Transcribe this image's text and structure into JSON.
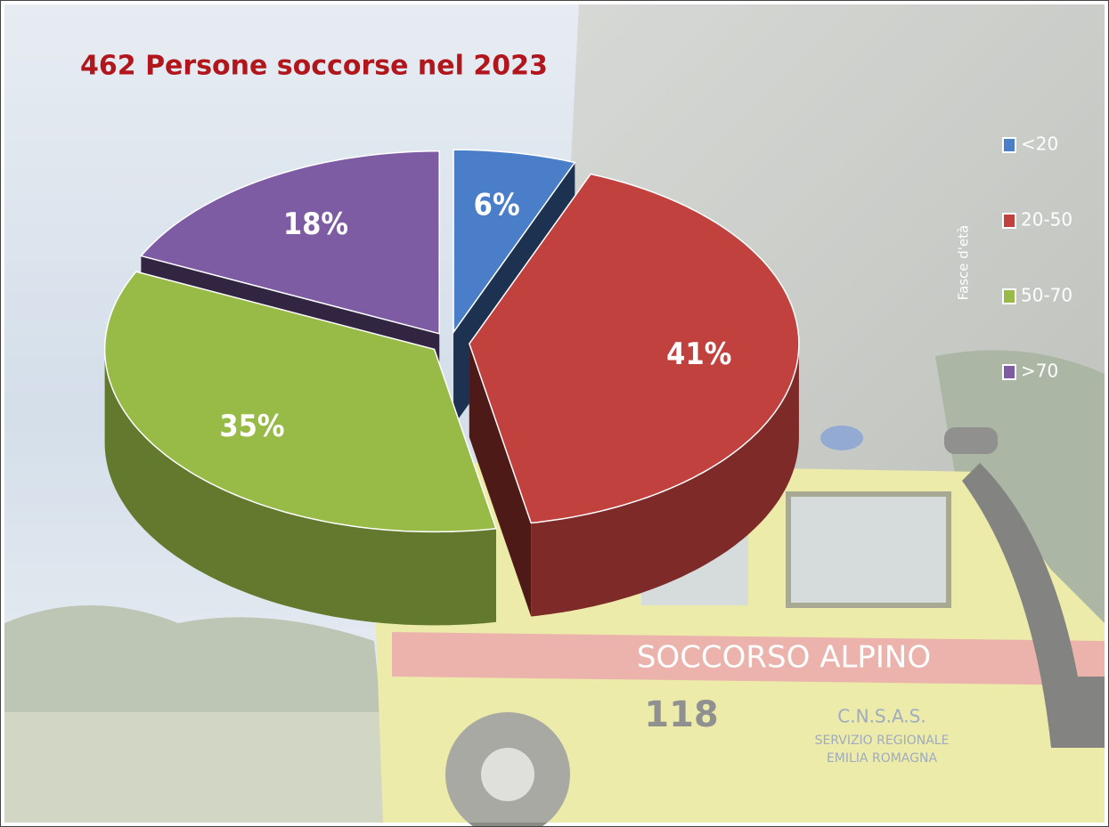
{
  "chart_data": {
    "type": "pie3d",
    "title": "462 Persone soccorse nel 2023",
    "legend_title": "Fasce d'età",
    "legend": "right",
    "categories": [
      "<20",
      "20-50",
      "50-70",
      ">70"
    ],
    "values": [
      6,
      41,
      35,
      18
    ],
    "value_labels": [
      "6%",
      "41%",
      "35%",
      "18%"
    ],
    "colors": [
      "#4a7ec8",
      "#c0413e",
      "#98bb48",
      "#7d5ca4"
    ],
    "annotations": [
      "SOCCORSO ALPINO",
      "118",
      "C.N.S.A.S.",
      "SERVIZIO REGIONALE",
      "EMILIA ROMAGNA"
    ]
  }
}
